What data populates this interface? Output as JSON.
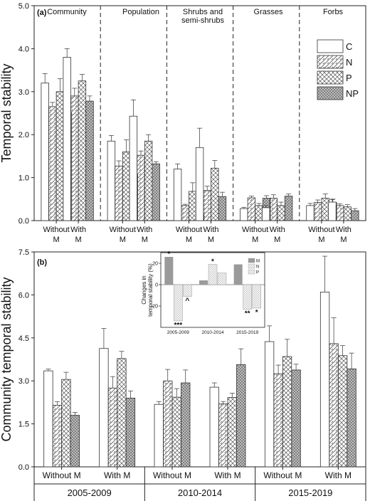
{
  "chart_data": [
    {
      "panel_label": "(a)",
      "type": "bar",
      "ylabel": "Temporal stability",
      "ylim": [
        0,
        5
      ],
      "yticks": [
        "0.0",
        "1.0",
        "2.0",
        "3.0",
        "4.0",
        "5.0"
      ],
      "groups": [
        "Community",
        "Population",
        "Shrubs and semi-shrubs",
        "Grasses",
        "Forbs"
      ],
      "subcategories": [
        "Without\nM",
        "With\nM"
      ],
      "legend": [
        "C",
        "N",
        "P",
        "NP"
      ],
      "legend_position": "top-right",
      "series": [
        {
          "name": "C",
          "values": [
            [
              3.2,
              3.8
            ],
            [
              1.85,
              2.43
            ],
            [
              1.2,
              1.7
            ],
            [
              0.28,
              0.3
            ],
            [
              0.35,
              0.43
            ]
          ],
          "errors": [
            [
              0.22,
              0.2
            ],
            [
              0.13,
              0.38
            ],
            [
              0.12,
              0.45
            ],
            [
              0.03,
              0.05
            ],
            [
              0.05,
              0.06
            ]
          ]
        },
        {
          "name": "N",
          "values": [
            [
              2.65,
              2.9
            ],
            [
              1.27,
              1.52
            ],
            [
              0.35,
              0.7
            ],
            [
              0.53,
              0.52
            ],
            [
              0.42,
              0.35
            ]
          ],
          "errors": [
            [
              0.1,
              0.18
            ],
            [
              0.12,
              0.1
            ],
            [
              0.03,
              0.1
            ],
            [
              0.04,
              0.08
            ],
            [
              0.06,
              0.04
            ]
          ]
        },
        {
          "name": "P",
          "values": [
            [
              3.0,
              3.25
            ],
            [
              1.6,
              1.85
            ],
            [
              0.68,
              1.22
            ],
            [
              0.35,
              0.35
            ],
            [
              0.52,
              0.32
            ]
          ],
          "errors": [
            [
              0.3,
              0.15
            ],
            [
              0.28,
              0.15
            ],
            [
              0.2,
              0.18
            ],
            [
              0.05,
              0.08
            ],
            [
              0.1,
              0.05
            ]
          ]
        },
        {
          "name": "NP",
          "values": [
            [
              2.52,
              2.78
            ],
            [
              1.07,
              1.32
            ],
            [
              0.15,
              0.56
            ],
            [
              0.52,
              0.57
            ],
            [
              0.42,
              0.23
            ]
          ],
          "errors": [
            [
              0.12,
              0.12
            ],
            [
              0.08,
              0.05
            ],
            [
              0.03,
              0.1
            ],
            [
              0.06,
              0.05
            ],
            [
              0.08,
              0.05
            ]
          ]
        }
      ]
    },
    {
      "panel_label": "(b)",
      "type": "bar",
      "ylabel": "Community temporal stability",
      "ylim": [
        0,
        7.5
      ],
      "yticks": [
        "0.0",
        "1.5",
        "3.0",
        "4.5",
        "6.0",
        "7.5"
      ],
      "groups": [
        "2005-2009",
        "2010-2014",
        "2015-2019"
      ],
      "subcategories": [
        "Without M",
        "With M"
      ],
      "series": [
        {
          "name": "C",
          "values": [
            [
              3.35,
              4.13
            ],
            [
              2.18,
              2.78
            ],
            [
              4.37,
              6.1
            ]
          ],
          "errors": [
            [
              0.06,
              0.7
            ],
            [
              0.1,
              0.15
            ],
            [
              0.55,
              1.25
            ]
          ]
        },
        {
          "name": "N",
          "values": [
            [
              2.15,
              2.75
            ],
            [
              3.0,
              2.2
            ],
            [
              3.25,
              4.3
            ]
          ],
          "errors": [
            [
              0.12,
              0.4
            ],
            [
              0.4,
              0.08
            ],
            [
              0.3,
              0.9
            ]
          ]
        },
        {
          "name": "P",
          "values": [
            [
              3.05,
              3.78
            ],
            [
              2.43,
              2.42
            ],
            [
              3.85,
              3.88
            ]
          ],
          "errors": [
            [
              0.25,
              0.25
            ],
            [
              0.3,
              0.15
            ],
            [
              0.6,
              0.35
            ]
          ]
        },
        {
          "name": "NP",
          "values": [
            [
              1.8,
              2.4
            ],
            [
              2.93,
              3.57
            ],
            [
              3.38,
              3.42
            ]
          ],
          "errors": [
            [
              0.1,
              0.25
            ],
            [
              0.45,
              0.55
            ],
            [
              0.2,
              0.55
            ]
          ]
        }
      ],
      "inset": {
        "type": "bar",
        "ylabel": "Changes in\ntemporal stability (%)",
        "ylim": [
          -40,
          30
        ],
        "yticks": [
          "20",
          "0",
          "-20"
        ],
        "categories": [
          "2005-2009",
          "2010-2014",
          "2015-2019"
        ],
        "legend": [
          "M",
          "N",
          "P"
        ],
        "legend_position": "top-right",
        "series": [
          {
            "name": "M",
            "values": [
              26,
              4,
              19
            ]
          },
          {
            "name": "N",
            "values": [
              -34,
              19,
              -23
            ]
          },
          {
            "name": "P",
            "values": [
              -11,
              11,
              -22
            ]
          }
        ],
        "annotations": [
          {
            "category": "2005-2009",
            "series": "M",
            "text": "*"
          },
          {
            "category": "2005-2009",
            "series": "N",
            "text": "***"
          },
          {
            "category": "2005-2009",
            "series": "P",
            "text": "^"
          },
          {
            "category": "2010-2014",
            "series": "N",
            "text": "*"
          },
          {
            "category": "2015-2019",
            "series": "N",
            "text": "**"
          },
          {
            "category": "2015-2019",
            "series": "P",
            "text": "*"
          }
        ]
      }
    }
  ]
}
